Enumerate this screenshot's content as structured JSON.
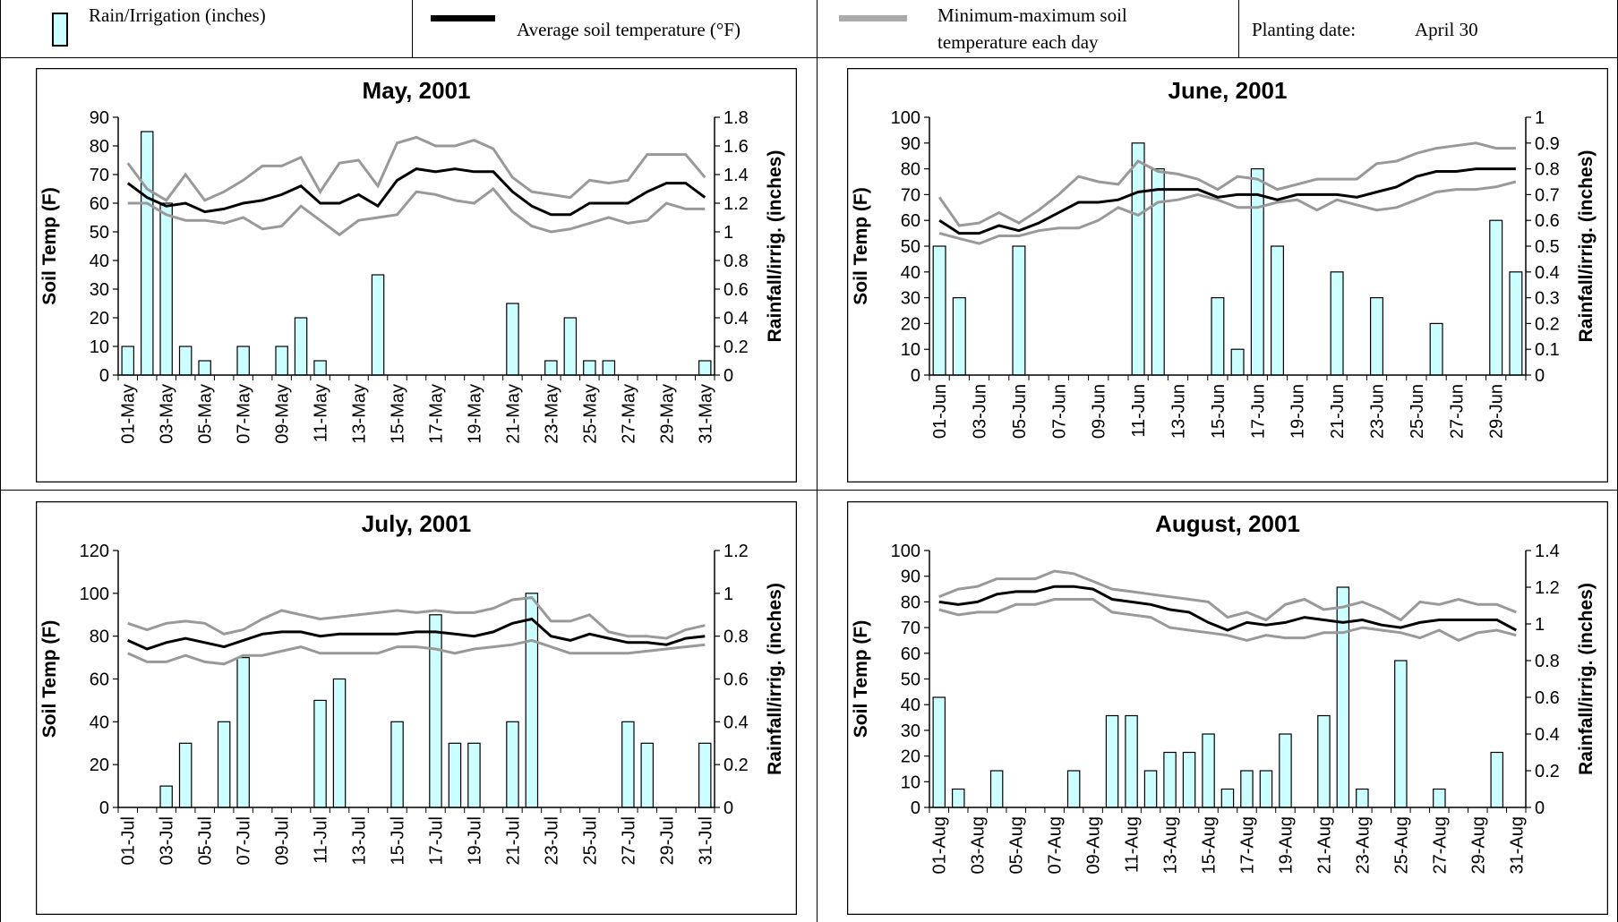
{
  "legend": {
    "rain_label": "Rain/Irrigation (inches)",
    "avg_label": "Average soil temperature (°F)",
    "minmax_label_line1": "Minimum-maximum soil",
    "minmax_label_line2": "temperature each day",
    "planting_label": "Planting date:",
    "planting_value": "April 30"
  },
  "colors": {
    "bar_fill": "#ccffff",
    "avg_line": "#000000",
    "minmax_line": "#999999"
  },
  "chart_data": [
    {
      "type": "bar+line",
      "title": "May, 2001",
      "ylabel": "Soil Temp (F)",
      "y2label": "Rainfall/irrig. (inches)",
      "ylim": [
        0,
        90
      ],
      "yticks": [
        0,
        10,
        20,
        30,
        40,
        50,
        60,
        70,
        80,
        90
      ],
      "y2lim": [
        0,
        1.8
      ],
      "y2ticks": [
        "0",
        "0.2",
        "0.4",
        "0.6",
        "0.8",
        "1",
        "1.2",
        "1.4",
        "1.6",
        "1.8"
      ],
      "x": [
        "01-May",
        "02-May",
        "03-May",
        "04-May",
        "05-May",
        "06-May",
        "07-May",
        "08-May",
        "09-May",
        "10-May",
        "11-May",
        "12-May",
        "13-May",
        "14-May",
        "15-May",
        "16-May",
        "17-May",
        "18-May",
        "19-May",
        "20-May",
        "21-May",
        "22-May",
        "23-May",
        "24-May",
        "25-May",
        "26-May",
        "27-May",
        "28-May",
        "29-May",
        "30-May",
        "31-May"
      ],
      "xtick_labels": [
        "01-May",
        "03-May",
        "05-May",
        "07-May",
        "09-May",
        "11-May",
        "13-May",
        "15-May",
        "17-May",
        "19-May",
        "21-May",
        "23-May",
        "25-May",
        "27-May",
        "29-May",
        "31-May"
      ],
      "rain": [
        0.2,
        1.7,
        1.2,
        0.2,
        0.1,
        0,
        0.2,
        0,
        0.2,
        0.4,
        0.1,
        0,
        0,
        0.7,
        0,
        0,
        0,
        0,
        0,
        0,
        0.5,
        0,
        0.1,
        0.4,
        0.1,
        0.1,
        0,
        0,
        0,
        0,
        0.1
      ],
      "avg": [
        67,
        62,
        59,
        60,
        57,
        58,
        60,
        61,
        63,
        66,
        60,
        60,
        63,
        59,
        68,
        72,
        71,
        72,
        71,
        71,
        64,
        59,
        56,
        56,
        60,
        60,
        60,
        64,
        67,
        67,
        62
      ],
      "max": [
        74,
        65,
        61,
        70,
        61,
        64,
        68,
        73,
        73,
        76,
        64,
        74,
        75,
        66,
        81,
        83,
        80,
        80,
        82,
        79,
        69,
        64,
        63,
        62,
        68,
        67,
        68,
        77,
        77,
        77,
        69
      ],
      "min": [
        60,
        60,
        56,
        54,
        54,
        53,
        55,
        51,
        52,
        59,
        54,
        49,
        54,
        55,
        56,
        64,
        63,
        61,
        60,
        65,
        57,
        52,
        50,
        51,
        53,
        55,
        53,
        54,
        60,
        58,
        58
      ]
    },
    {
      "type": "bar+line",
      "title": "June, 2001",
      "ylabel": "Soil Temp (F)",
      "y2label": "Rainfall/irrig. (inches)",
      "ylim": [
        0,
        100
      ],
      "yticks": [
        0,
        10,
        20,
        30,
        40,
        50,
        60,
        70,
        80,
        90,
        100
      ],
      "y2lim": [
        0,
        1
      ],
      "y2ticks": [
        "0",
        "0.1",
        "0.2",
        "0.3",
        "0.4",
        "0.5",
        "0.6",
        "0.7",
        "0.8",
        "0.9",
        "1"
      ],
      "x": [
        "01-Jun",
        "02-Jun",
        "03-Jun",
        "04-Jun",
        "05-Jun",
        "06-Jun",
        "07-Jun",
        "08-Jun",
        "09-Jun",
        "10-Jun",
        "11-Jun",
        "12-Jun",
        "13-Jun",
        "14-Jun",
        "15-Jun",
        "16-Jun",
        "17-Jun",
        "18-Jun",
        "19-Jun",
        "20-Jun",
        "21-Jun",
        "22-Jun",
        "23-Jun",
        "24-Jun",
        "25-Jun",
        "26-Jun",
        "27-Jun",
        "28-Jun",
        "29-Jun",
        "30-Jun"
      ],
      "xtick_labels": [
        "01-Jun",
        "03-Jun",
        "05-Jun",
        "07-Jun",
        "09-Jun",
        "11-Jun",
        "13-Jun",
        "15-Jun",
        "17-Jun",
        "19-Jun",
        "21-Jun",
        "23-Jun",
        "25-Jun",
        "27-Jun",
        "29-Jun"
      ],
      "rain": [
        0.5,
        0.3,
        0,
        0,
        0.5,
        0,
        0,
        0,
        0,
        0,
        0.9,
        0.8,
        0,
        0,
        0.3,
        0.1,
        0.8,
        0.5,
        0,
        0,
        0.4,
        0,
        0.3,
        0,
        0,
        0.2,
        0,
        0,
        0.6,
        0.4
      ],
      "avg": [
        60,
        55,
        55,
        58,
        56,
        59,
        63,
        67,
        67,
        68,
        71,
        72,
        72,
        72,
        69,
        70,
        70,
        68,
        70,
        70,
        70,
        69,
        71,
        73,
        77,
        79,
        79,
        80,
        80,
        80
      ],
      "max": [
        69,
        58,
        59,
        63,
        59,
        64,
        70,
        77,
        75,
        74,
        83,
        79,
        78,
        76,
        72,
        77,
        76,
        72,
        74,
        76,
        76,
        76,
        82,
        83,
        86,
        88,
        89,
        90,
        88,
        88
      ],
      "min": [
        55,
        53,
        51,
        54,
        54,
        56,
        57,
        57,
        60,
        65,
        62,
        67,
        68,
        70,
        68,
        65,
        65,
        67,
        68,
        64,
        68,
        66,
        64,
        65,
        68,
        71,
        72,
        72,
        73,
        75
      ]
    },
    {
      "type": "bar+line",
      "title": "July, 2001",
      "ylabel": "Soil Temp (F)",
      "y2label": "Rainfall/irrig. (inches)",
      "ylim": [
        0,
        120
      ],
      "yticks": [
        0,
        20,
        40,
        60,
        80,
        100,
        120
      ],
      "y2lim": [
        0,
        1.2
      ],
      "y2ticks": [
        "0",
        "0.2",
        "0.4",
        "0.6",
        "0.8",
        "1",
        "1.2"
      ],
      "x": [
        "01-Jul",
        "02-Jul",
        "03-Jul",
        "04-Jul",
        "05-Jul",
        "06-Jul",
        "07-Jul",
        "08-Jul",
        "09-Jul",
        "10-Jul",
        "11-Jul",
        "12-Jul",
        "13-Jul",
        "14-Jul",
        "15-Jul",
        "16-Jul",
        "17-Jul",
        "18-Jul",
        "19-Jul",
        "20-Jul",
        "21-Jul",
        "22-Jul",
        "23-Jul",
        "24-Jul",
        "25-Jul",
        "26-Jul",
        "27-Jul",
        "28-Jul",
        "29-Jul",
        "30-Jul",
        "31-Jul"
      ],
      "xtick_labels": [
        "01-Jul",
        "03-Jul",
        "05-Jul",
        "07-Jul",
        "09-Jul",
        "11-Jul",
        "13-Jul",
        "15-Jul",
        "17-Jul",
        "19-Jul",
        "21-Jul",
        "23-Jul",
        "25-Jul",
        "27-Jul",
        "29-Jul",
        "31-Jul"
      ],
      "rain": [
        0,
        0,
        0.1,
        0.3,
        0,
        0.4,
        0.7,
        0,
        0,
        0,
        0.5,
        0.6,
        0,
        0,
        0.4,
        0,
        0.9,
        0.3,
        0.3,
        0,
        0.4,
        1,
        0,
        0,
        0,
        0,
        0.4,
        0.3,
        0,
        0,
        0.3
      ],
      "avg": [
        78,
        74,
        77,
        79,
        77,
        75,
        78,
        81,
        82,
        82,
        80,
        81,
        81,
        81,
        81,
        82,
        82,
        81,
        80,
        82,
        86,
        88,
        80,
        78,
        81,
        79,
        77,
        77,
        76,
        79,
        80
      ],
      "max": [
        86,
        83,
        86,
        87,
        86,
        81,
        83,
        88,
        92,
        90,
        88,
        89,
        90,
        91,
        92,
        91,
        92,
        91,
        91,
        93,
        97,
        98,
        87,
        87,
        90,
        82,
        80,
        80,
        79,
        83,
        85
      ],
      "min": [
        72,
        68,
        68,
        71,
        68,
        67,
        71,
        71,
        73,
        75,
        72,
        72,
        72,
        72,
        75,
        75,
        74,
        72,
        74,
        75,
        76,
        78,
        75,
        72,
        72,
        72,
        72,
        73,
        74,
        75,
        76
      ]
    },
    {
      "type": "bar+line",
      "title": "August, 2001",
      "ylabel": "Soil Temp (F)",
      "y2label": "Rainfall/irrig. (inches)",
      "ylim": [
        0,
        100
      ],
      "yticks": [
        0,
        10,
        20,
        30,
        40,
        50,
        60,
        70,
        80,
        90,
        100
      ],
      "y2lim": [
        0,
        1.4
      ],
      "y2ticks": [
        "0",
        "0.2",
        "0.4",
        "0.6",
        "0.8",
        "1",
        "1.2",
        "1.4"
      ],
      "x": [
        "01-Aug",
        "02-Aug",
        "03-Aug",
        "04-Aug",
        "05-Aug",
        "06-Aug",
        "07-Aug",
        "08-Aug",
        "09-Aug",
        "10-Aug",
        "11-Aug",
        "12-Aug",
        "13-Aug",
        "14-Aug",
        "15-Aug",
        "16-Aug",
        "17-Aug",
        "18-Aug",
        "19-Aug",
        "20-Aug",
        "21-Aug",
        "22-Aug",
        "23-Aug",
        "24-Aug",
        "25-Aug",
        "26-Aug",
        "27-Aug",
        "28-Aug",
        "29-Aug",
        "30-Aug",
        "31-Aug"
      ],
      "xtick_labels": [
        "01-Aug",
        "03-Aug",
        "05-Aug",
        "07-Aug",
        "09-Aug",
        "11-Aug",
        "13-Aug",
        "15-Aug",
        "17-Aug",
        "19-Aug",
        "21-Aug",
        "23-Aug",
        "25-Aug",
        "27-Aug",
        "29-Aug",
        "31-Aug"
      ],
      "rain": [
        0.6,
        0.1,
        0,
        0.2,
        0,
        0,
        0,
        0.2,
        0,
        0.5,
        0.5,
        0.2,
        0.3,
        0.3,
        0.4,
        0.1,
        0.2,
        0.2,
        0.4,
        0,
        0.5,
        1.2,
        0.1,
        0,
        0.8,
        0,
        0.1,
        0,
        0,
        0.3,
        0
      ],
      "avg": [
        80,
        79,
        80,
        83,
        84,
        84,
        86,
        86,
        85,
        81,
        80,
        79,
        77,
        76,
        72,
        69,
        72,
        71,
        72,
        74,
        73,
        72,
        73,
        71,
        70,
        72,
        73,
        73,
        73,
        73,
        69
      ],
      "max": [
        82,
        85,
        86,
        89,
        89,
        89,
        92,
        91,
        88,
        85,
        84,
        83,
        82,
        81,
        80,
        74,
        76,
        73,
        79,
        81,
        77,
        78,
        80,
        77,
        73,
        80,
        79,
        81,
        79,
        79,
        76
      ],
      "min": [
        77,
        75,
        76,
        76,
        79,
        79,
        81,
        81,
        81,
        76,
        75,
        74,
        70,
        69,
        68,
        67,
        65,
        67,
        66,
        66,
        68,
        68,
        70,
        69,
        68,
        66,
        69,
        65,
        68,
        69,
        67
      ]
    }
  ]
}
